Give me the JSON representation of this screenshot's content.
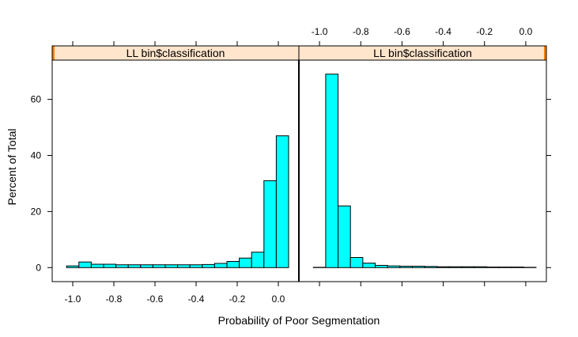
{
  "chart_data": {
    "type": "bar",
    "subtype": "histogram-panels",
    "xlabel": "Probability of Poor Segmentation",
    "ylabel": "Percent of Total",
    "ylim": [
      -5,
      74
    ],
    "y_ticks": [
      0,
      20,
      40,
      60
    ],
    "colors": {
      "fill": "#00FFFF",
      "stroke": "#000000",
      "strip_bg": "#FFE5CC",
      "strip_accent": "#FF7F00"
    },
    "panels": [
      {
        "strip_label": "LL  bin$classification",
        "xlim": [
          -1.1,
          0.1
        ],
        "x_ticks": [
          -1.0,
          -0.8,
          -0.6,
          -0.4,
          -0.2,
          0.0
        ],
        "x_tick_labels": [
          "-1.0",
          "-0.8",
          "-0.6",
          "-0.4",
          "-0.2",
          "0.0"
        ],
        "bins": [
          {
            "x0": -1.03,
            "x1": -0.97,
            "value": 0.6
          },
          {
            "x0": -0.97,
            "x1": -0.91,
            "value": 2.0
          },
          {
            "x0": -0.91,
            "x1": -0.85,
            "value": 1.2
          },
          {
            "x0": -0.85,
            "x1": -0.79,
            "value": 1.2
          },
          {
            "x0": -0.79,
            "x1": -0.73,
            "value": 1.0
          },
          {
            "x0": -0.73,
            "x1": -0.67,
            "value": 1.0
          },
          {
            "x0": -0.67,
            "x1": -0.61,
            "value": 1.0
          },
          {
            "x0": -0.61,
            "x1": -0.55,
            "value": 1.0
          },
          {
            "x0": -0.55,
            "x1": -0.49,
            "value": 1.0
          },
          {
            "x0": -0.49,
            "x1": -0.43,
            "value": 1.0
          },
          {
            "x0": -0.43,
            "x1": -0.37,
            "value": 1.0
          },
          {
            "x0": -0.37,
            "x1": -0.31,
            "value": 1.1
          },
          {
            "x0": -0.31,
            "x1": -0.25,
            "value": 1.5
          },
          {
            "x0": -0.25,
            "x1": -0.19,
            "value": 2.2
          },
          {
            "x0": -0.19,
            "x1": -0.13,
            "value": 3.4
          },
          {
            "x0": -0.13,
            "x1": -0.07,
            "value": 5.5
          },
          {
            "x0": -0.07,
            "x1": -0.01,
            "value": 31.0
          },
          {
            "x0": -0.01,
            "x1": 0.05,
            "value": 47.0
          }
        ]
      },
      {
        "strip_label": "LL  bin$classification",
        "xlim": [
          -1.1,
          0.1
        ],
        "x_ticks": [
          -1.0,
          -0.8,
          -0.6,
          -0.4,
          -0.2,
          0.0
        ],
        "x_tick_labels": [
          "-1.0",
          "-0.8",
          "-0.6",
          "-0.4",
          "-0.2",
          "0.0"
        ],
        "bins": [
          {
            "x0": -1.03,
            "x1": -0.97,
            "value": 0.1
          },
          {
            "x0": -0.97,
            "x1": -0.91,
            "value": 69.0
          },
          {
            "x0": -0.91,
            "x1": -0.85,
            "value": 22.0
          },
          {
            "x0": -0.85,
            "x1": -0.79,
            "value": 3.6
          },
          {
            "x0": -0.79,
            "x1": -0.73,
            "value": 1.6
          },
          {
            "x0": -0.73,
            "x1": -0.67,
            "value": 0.8
          },
          {
            "x0": -0.67,
            "x1": -0.61,
            "value": 0.6
          },
          {
            "x0": -0.61,
            "x1": -0.55,
            "value": 0.5
          },
          {
            "x0": -0.55,
            "x1": -0.49,
            "value": 0.5
          },
          {
            "x0": -0.49,
            "x1": -0.43,
            "value": 0.4
          },
          {
            "x0": -0.43,
            "x1": -0.37,
            "value": 0.3
          },
          {
            "x0": -0.37,
            "x1": -0.31,
            "value": 0.3
          },
          {
            "x0": -0.31,
            "x1": -0.25,
            "value": 0.3
          },
          {
            "x0": -0.25,
            "x1": -0.19,
            "value": 0.3
          },
          {
            "x0": -0.19,
            "x1": -0.13,
            "value": 0.2
          },
          {
            "x0": -0.13,
            "x1": -0.07,
            "value": 0.2
          },
          {
            "x0": -0.07,
            "x1": -0.01,
            "value": 0.2
          },
          {
            "x0": -0.01,
            "x1": 0.05,
            "value": 0.1
          }
        ]
      }
    ]
  }
}
